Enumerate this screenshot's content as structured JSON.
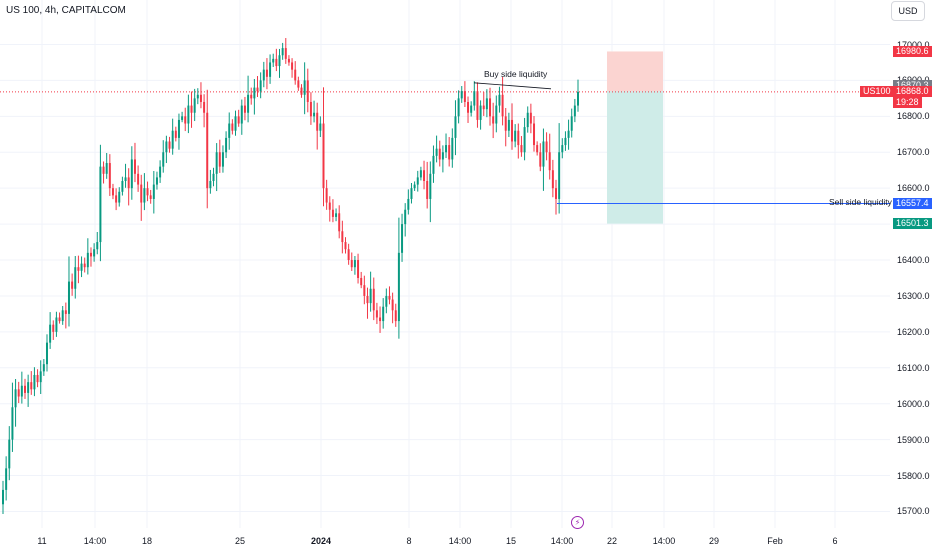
{
  "header": {
    "symbol_title": "US 100, 4h, CAPITALCOM",
    "currency_button": "USD"
  },
  "colors": {
    "up": "#089981",
    "down": "#f23645",
    "grid": "#f0f3fa",
    "price_line": "#f23645",
    "sell_line": "#2962ff",
    "risk_zone": "#fbd4d1",
    "reward_zone": "#cfece8"
  },
  "price_labels": {
    "stop": "16980.6",
    "upper": "16870.3",
    "last_symbol": "US100",
    "last_price": "16868.0",
    "countdown": "19:28",
    "sell_level": "16557.4",
    "target": "16501.3"
  },
  "annotations": {
    "buy_side": "Buy side liquidity",
    "sell_side": "Sell side liquidity"
  },
  "icons": {
    "event": "lightning-icon"
  },
  "chart_data": {
    "type": "candlestick",
    "title": "US 100, 4h, CAPITALCOM",
    "y_tick_labels": [
      "17000.0",
      "16900.0",
      "16800.0",
      "16700.0",
      "16600.0",
      "16500.0",
      "16400.0",
      "16300.0",
      "16200.0",
      "16100.0",
      "16000.0",
      "15900.0",
      "15800.0",
      "15700.0"
    ],
    "x_tick_labels": [
      "11",
      "14:00",
      "18",
      "25",
      "2024",
      "8",
      "14:00",
      "15",
      "14:00",
      "22",
      "14:00",
      "29",
      "Feb",
      "6"
    ],
    "ylim": [
      15670,
      17060
    ],
    "grid": true,
    "levels": {
      "last_price": 16868.0,
      "buy_side_liquidity": 16885,
      "sell_side_liquidity": 16557.4,
      "position_stop": 16980.6,
      "position_entry": 16870.3,
      "position_target": 16501.3
    },
    "closes": [
      15760,
      15820,
      15900,
      15990,
      16040,
      16020,
      16050,
      16030,
      16060,
      16040,
      16080,
      16060,
      16090,
      16110,
      16170,
      16220,
      16200,
      16240,
      16230,
      16260,
      16250,
      16340,
      16320,
      16380,
      16370,
      16390,
      16380,
      16420,
      16410,
      16430,
      16450,
      16660,
      16640,
      16670,
      16600,
      16580,
      16560,
      16590,
      16620,
      16630,
      16600,
      16680,
      16640,
      16610,
      16560,
      16600,
      16580,
      16570,
      16610,
      16630,
      16660,
      16700,
      16730,
      16710,
      16760,
      16740,
      16790,
      16800,
      16780,
      16830,
      16810,
      16850,
      16860,
      16840,
      16810,
      16600,
      16620,
      16640,
      16700,
      16660,
      16700,
      16740,
      16780,
      16760,
      16800,
      16780,
      16830,
      16810,
      16860,
      16850,
      16880,
      16870,
      16900,
      16930,
      16910,
      16950,
      16960,
      16940,
      16970,
      16990,
      16960,
      16950,
      16930,
      16900,
      16880,
      16860,
      16900,
      16840,
      16800,
      16810,
      16760,
      16780,
      16600,
      16560,
      16540,
      16520,
      16530,
      16480,
      16450,
      16430,
      16400,
      16380,
      16400,
      16350,
      16330,
      16300,
      16280,
      16320,
      16260,
      16240,
      16230,
      16270,
      16300,
      16290,
      16260,
      16230,
      16420,
      16500,
      16540,
      16570,
      16600,
      16610,
      16630,
      16650,
      16620,
      16570,
      16640,
      16690,
      16710,
      16680,
      16700,
      16720,
      16680,
      16740,
      16800,
      16850,
      16870,
      16840,
      16810,
      16830,
      16870,
      16790,
      16830,
      16820,
      16850,
      16800,
      16780,
      16830,
      16860,
      16800,
      16760,
      16790,
      16730,
      16760,
      16720,
      16700,
      16770,
      16810,
      16780,
      16720,
      16700,
      16660,
      16730,
      16700,
      16650,
      16600,
      16570,
      16700,
      16720,
      16740,
      16760,
      16800,
      16830,
      16868
    ]
  }
}
